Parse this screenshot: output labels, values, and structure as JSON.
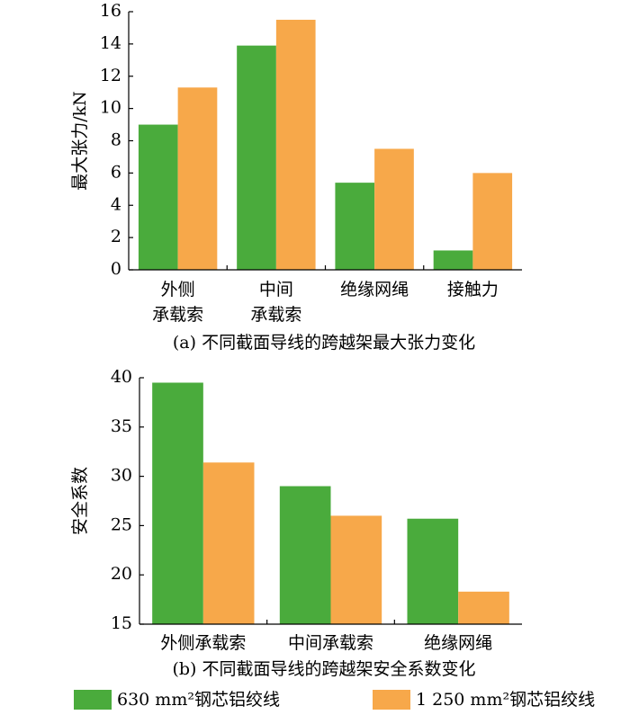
{
  "chart_data": [
    {
      "type": "bar",
      "ylabel": "最大张力/kN",
      "caption": "(a)  不同截面导线的跨越架最大张力变化",
      "categories": [
        [
          "外侧",
          "承载索"
        ],
        [
          "中间",
          "承载索"
        ],
        [
          "绝缘网绳"
        ],
        [
          "接触力"
        ]
      ],
      "series": [
        {
          "color": "#4aab3c",
          "values": [
            9.0,
            13.9,
            5.4,
            1.2
          ]
        },
        {
          "color": "#f7a84a",
          "values": [
            11.3,
            15.5,
            7.5,
            6.0
          ]
        }
      ],
      "ylim": [
        0,
        16
      ],
      "yticks": [
        0,
        2,
        4,
        6,
        8,
        10,
        12,
        14,
        16
      ]
    },
    {
      "type": "bar",
      "ylabel": "安全系数",
      "caption": "(b)  不同截面导线的跨越架安全系数变化",
      "categories": [
        [
          "外侧承载索"
        ],
        [
          "中间承载索"
        ],
        [
          "绝缘网绳"
        ]
      ],
      "series": [
        {
          "name": "630 mm²钢芯铝绞线",
          "color": "#4aab3c",
          "values": [
            39.5,
            29.0,
            25.7
          ]
        },
        {
          "name": "1 250 mm²钢芯铝绞线",
          "color": "#f7a84a",
          "values": [
            31.4,
            26.0,
            18.3
          ]
        }
      ],
      "ylim": [
        15,
        40
      ],
      "yticks": [
        15,
        20,
        25,
        30,
        35,
        40
      ]
    }
  ]
}
